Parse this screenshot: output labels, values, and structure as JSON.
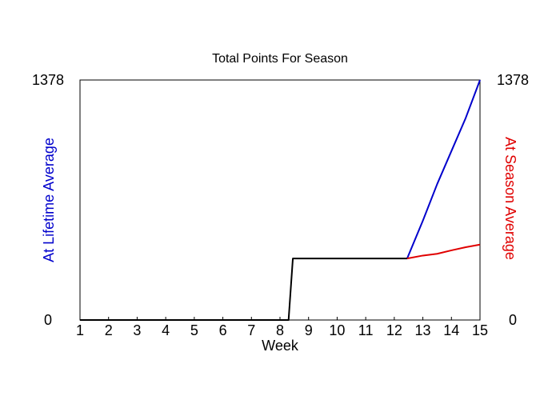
{
  "chart_data": {
    "type": "line",
    "title": "Total Points For Season",
    "xlabel": "Week",
    "ylabel_left": "At Lifetime Average",
    "ylabel_right": "At Season Average",
    "xlim": [
      1,
      15
    ],
    "ylim": [
      0,
      1378
    ],
    "x_ticks": [
      "1",
      "2",
      "3",
      "4",
      "5",
      "6",
      "7",
      "8",
      "9",
      "10",
      "11",
      "12",
      "13",
      "14",
      "15"
    ],
    "y_tick_left": [
      "0",
      "1378"
    ],
    "y_tick_right": [
      "0",
      "1378"
    ],
    "colors": {
      "actual": "#000000",
      "lifetime": "#0000cc",
      "season": "#e00000"
    },
    "series": [
      {
        "key": "actual",
        "x": [
          1,
          8.3,
          8.45,
          12.45
        ],
        "y": [
          0,
          0,
          353,
          353
        ]
      },
      {
        "key": "lifetime",
        "x": [
          12.45,
          13,
          13.5,
          14,
          14.5,
          15
        ],
        "y": [
          353,
          570,
          780,
          970,
          1160,
          1378
        ]
      },
      {
        "key": "season",
        "x": [
          12.45,
          13,
          13.5,
          14,
          14.5,
          15
        ],
        "y": [
          353,
          370,
          380,
          400,
          418,
          433
        ]
      }
    ]
  }
}
